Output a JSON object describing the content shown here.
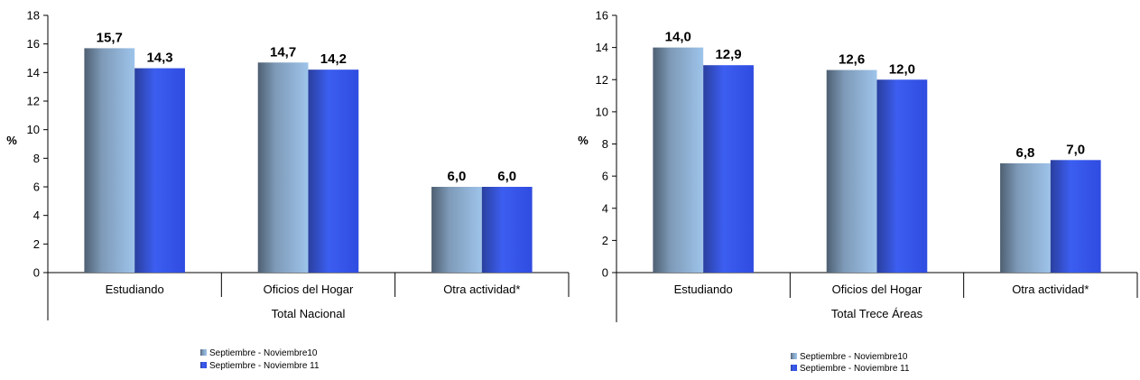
{
  "chart_data": [
    {
      "type": "bar",
      "ylabel": "%",
      "group_label": "Total Nacional",
      "categories": [
        "Estudiando",
        "Oficios del Hogar",
        "Otra actividad*"
      ],
      "series": [
        {
          "name": "Septiembre - Noviembre10",
          "values": [
            15.7,
            14.7,
            6.0
          ],
          "labels": [
            "15,7",
            "14,7",
            "6,0"
          ],
          "color": "#9ec4ea"
        },
        {
          "name": "Septiembre - Noviembre 11",
          "values": [
            14.3,
            14.2,
            6.0
          ],
          "labels": [
            "14,3",
            "14,2",
            "6,0"
          ],
          "color": "#3c5ef0"
        }
      ],
      "ylim": [
        0,
        18
      ],
      "yticks": [
        "0",
        "2",
        "4",
        "6",
        "8",
        "10",
        "12",
        "14",
        "16",
        "18"
      ],
      "grid": false,
      "legend": "bottom-center"
    },
    {
      "type": "bar",
      "ylabel": "%",
      "group_label": "Total Trece Áreas",
      "categories": [
        "Estudiando",
        "Oficios del Hogar",
        "Otra actividad*"
      ],
      "series": [
        {
          "name": "Septiembre - Noviembre10",
          "values": [
            14.0,
            12.6,
            6.8
          ],
          "labels": [
            "14,0",
            "12,6",
            "6,8"
          ],
          "color": "#9ec4ea"
        },
        {
          "name": "Septiembre - Noviembre 11",
          "values": [
            12.9,
            12.0,
            7.0
          ],
          "labels": [
            "12,9",
            "12,0",
            "7,0"
          ],
          "color": "#3c5ef0"
        }
      ],
      "ylim": [
        0,
        16
      ],
      "yticks": [
        "0",
        "2",
        "4",
        "6",
        "8",
        "10",
        "12",
        "14",
        "16"
      ],
      "grid": false,
      "legend": "bottom-center"
    }
  ]
}
